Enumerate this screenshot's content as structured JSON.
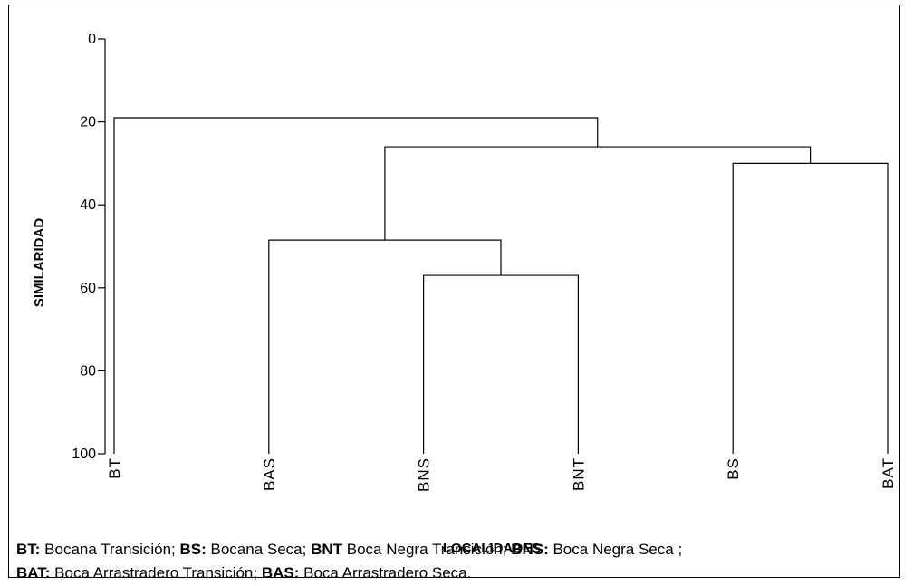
{
  "chart_data": {
    "type": "dendrogram",
    "ylabel": "SIMILARIDAD",
    "xlabel": "LOCALIDADES",
    "ylim": [
      0,
      100
    ],
    "yticks": [
      "0",
      "20",
      "40",
      "60",
      "80",
      "100"
    ],
    "leaves": [
      "BT",
      "BAS",
      "BNS",
      "BNT",
      "BS",
      "BAT"
    ],
    "merges": [
      {
        "left": [
          2
        ],
        "right": [
          3
        ],
        "height": 57
      },
      {
        "left": [
          1
        ],
        "right": [
          2,
          3
        ],
        "height": 48.5
      },
      {
        "left": [
          4
        ],
        "right": [
          5
        ],
        "height": 30
      },
      {
        "left": [
          1,
          2,
          3
        ],
        "right": [
          4,
          5
        ],
        "height": 26
      },
      {
        "left": [
          0
        ],
        "right": [
          1,
          2,
          3,
          4,
          5
        ],
        "height": 19
      }
    ]
  },
  "legend": {
    "line1": [
      {
        "abbr": "BT:",
        "text": " Bocana Transición; "
      },
      {
        "abbr": "BS:",
        "text": " Bocana  Seca; "
      },
      {
        "abbr": "BNT",
        "text": " Boca Negra Transición; "
      },
      {
        "abbr": "BNS:",
        "text": " Boca Negra Seca ;"
      }
    ],
    "line2": [
      {
        "abbr": "BAT:",
        "text": " Boca Arrastradero Transición; "
      },
      {
        "abbr": "BAS:",
        "text": " Boca Arrastradero Seca."
      }
    ]
  }
}
